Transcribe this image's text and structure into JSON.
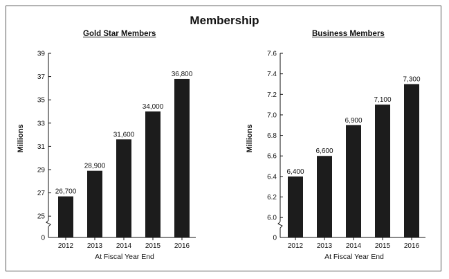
{
  "title": "Membership",
  "chart_data": [
    {
      "type": "bar",
      "title": "Gold Star Members",
      "categories": [
        "2012",
        "2013",
        "2014",
        "2015",
        "2016"
      ],
      "values": [
        26.7,
        28.9,
        31.6,
        34.0,
        36.8
      ],
      "value_labels": [
        "26,700",
        "28,900",
        "31,600",
        "34,000",
        "36,800"
      ],
      "ylabel": "Millions",
      "xlabel": "At Fiscal Year End",
      "yticks": [
        0,
        25,
        27,
        29,
        31,
        33,
        35,
        37,
        39
      ],
      "ytick_labels": [
        "0",
        "25",
        "27",
        "29",
        "31",
        "33",
        "35",
        "37",
        "39"
      ],
      "ylim": [
        24,
        39
      ],
      "axis_break": true,
      "grid": false,
      "bar_color": "#1c1c1c"
    },
    {
      "type": "bar",
      "title": "Business Members",
      "categories": [
        "2012",
        "2013",
        "2014",
        "2015",
        "2016"
      ],
      "values": [
        6.4,
        6.6,
        6.9,
        7.1,
        7.3
      ],
      "value_labels": [
        "6,400",
        "6,600",
        "6,900",
        "7,100",
        "7,300"
      ],
      "ylabel": "Millions",
      "xlabel": "At Fiscal Year End",
      "yticks": [
        0,
        6.0,
        6.2,
        6.4,
        6.6,
        6.8,
        7.0,
        7.2,
        7.4,
        7.6
      ],
      "ytick_labels": [
        "0",
        "6.0",
        "6.2",
        "6.4",
        "6.6",
        "6.8",
        "7.0",
        "7.2",
        "7.4",
        "7.6"
      ],
      "ylim": [
        5.9,
        7.6
      ],
      "axis_break": true,
      "grid": false,
      "bar_color": "#1c1c1c"
    }
  ]
}
